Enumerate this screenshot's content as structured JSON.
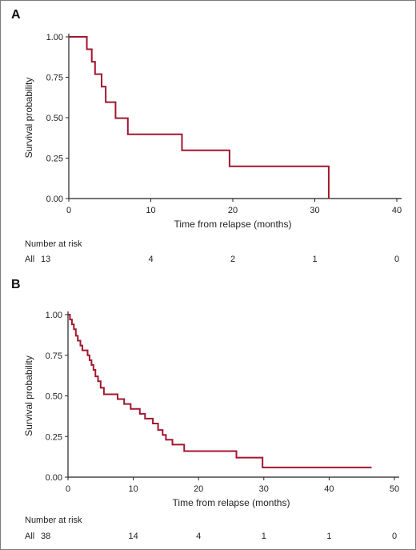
{
  "chart_data": [
    {
      "type": "line",
      "panel": "A",
      "ylabel": "Survival probability",
      "xlabel": "Time from relapse (months)",
      "xlim": [
        0,
        40
      ],
      "ylim": [
        0,
        1
      ],
      "x_ticks": [
        "0",
        "10",
        "20",
        "30",
        "40"
      ],
      "y_ticks": [
        "0.00",
        "0.25",
        "0.50",
        "0.75",
        "1.00"
      ],
      "color": "#a3162f",
      "steps": [
        [
          0,
          1.0
        ],
        [
          2.2,
          0.923
        ],
        [
          2.8,
          0.846
        ],
        [
          3.2,
          0.769
        ],
        [
          4.0,
          0.692
        ],
        [
          4.5,
          0.596
        ],
        [
          5.7,
          0.497
        ],
        [
          7.2,
          0.397
        ],
        [
          13.8,
          0.298
        ],
        [
          19.6,
          0.199
        ],
        [
          31.7,
          0.0
        ]
      ],
      "risk_title": "Number at risk",
      "risk_label": "All",
      "risk_values": [
        "13",
        "4",
        "2",
        "1",
        "0"
      ]
    },
    {
      "type": "line",
      "panel": "B",
      "ylabel": "Survival probability",
      "xlabel": "Time from relapse (months)",
      "xlim": [
        0,
        50
      ],
      "ylim": [
        0,
        1
      ],
      "x_ticks": [
        "0",
        "10",
        "20",
        "30",
        "40",
        "50"
      ],
      "y_ticks": [
        "0.00",
        "0.25",
        "0.50",
        "0.75",
        "1.00"
      ],
      "color": "#a3162f",
      "steps": [
        [
          0,
          1.0
        ],
        [
          0.3,
          0.97
        ],
        [
          0.6,
          0.94
        ],
        [
          0.9,
          0.91
        ],
        [
          1.2,
          0.87
        ],
        [
          1.5,
          0.84
        ],
        [
          1.9,
          0.81
        ],
        [
          2.2,
          0.78
        ],
        [
          3.0,
          0.75
        ],
        [
          3.3,
          0.72
        ],
        [
          3.6,
          0.69
        ],
        [
          3.9,
          0.66
        ],
        [
          4.2,
          0.62
        ],
        [
          4.6,
          0.59
        ],
        [
          5.0,
          0.55
        ],
        [
          5.5,
          0.51
        ],
        [
          7.6,
          0.48
        ],
        [
          8.6,
          0.45
        ],
        [
          9.6,
          0.42
        ],
        [
          11.0,
          0.39
        ],
        [
          11.8,
          0.36
        ],
        [
          13.0,
          0.33
        ],
        [
          13.8,
          0.29
        ],
        [
          14.5,
          0.26
        ],
        [
          15.0,
          0.23
        ],
        [
          16.0,
          0.2
        ],
        [
          17.8,
          0.16
        ],
        [
          25.8,
          0.12
        ],
        [
          29.8,
          0.06
        ],
        [
          46.5,
          0.06
        ]
      ],
      "risk_title": "Number at risk",
      "risk_label": "All",
      "risk_values": [
        "38",
        "14",
        "4",
        "1",
        "1",
        "0"
      ]
    }
  ]
}
